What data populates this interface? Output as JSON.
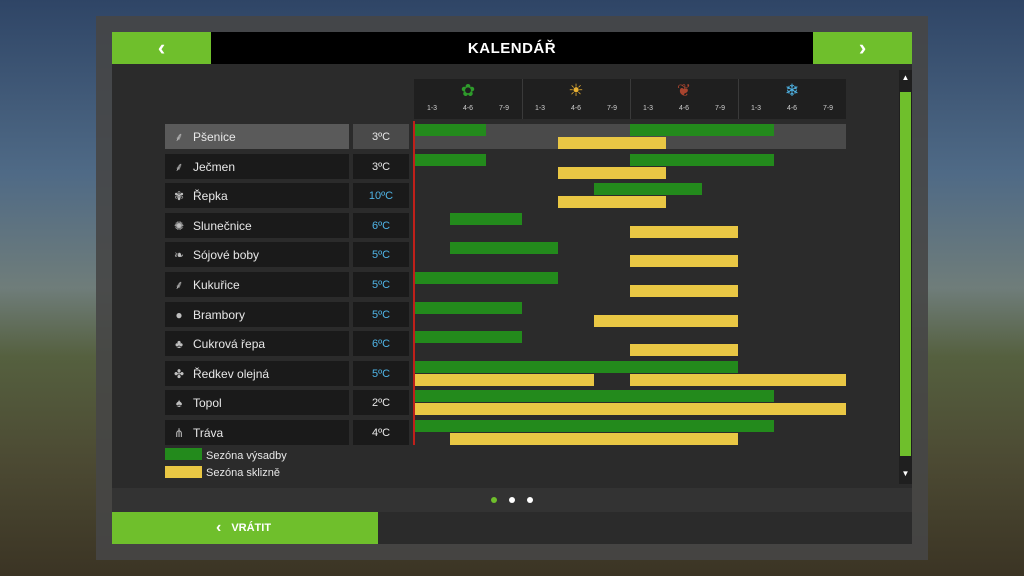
{
  "header": {
    "title": "KALENDÁŘ",
    "prev": "‹",
    "next": "›"
  },
  "seasons": [
    {
      "name": "spring",
      "icon": "flower-icon",
      "glyph": "✿",
      "color": "#2e9b2b",
      "months": [
        "1-3",
        "4-6",
        "7-9"
      ]
    },
    {
      "name": "summer",
      "icon": "sun-icon",
      "glyph": "☀",
      "color": "#e8b032",
      "months": [
        "1-3",
        "4-6",
        "7-9"
      ]
    },
    {
      "name": "autumn",
      "icon": "leaf-icon",
      "glyph": "❦",
      "color": "#a8442e",
      "months": [
        "1-3",
        "4-6",
        "7-9"
      ]
    },
    {
      "name": "winter",
      "icon": "snowflake-icon",
      "glyph": "❄",
      "color": "#4fb4e6",
      "months": [
        "1-3",
        "4-6",
        "7-9"
      ]
    }
  ],
  "crops": [
    {
      "name": "Pšenice",
      "temp": "3ºC",
      "icon": "wheat-icon",
      "glyph": "⸙",
      "temp_color": "#e8e8e8",
      "selected": true,
      "plant": [
        [
          0,
          2
        ],
        [
          6,
          10
        ]
      ],
      "harvest": [
        [
          4,
          7
        ]
      ]
    },
    {
      "name": "Ječmen",
      "temp": "3ºC",
      "icon": "barley-icon",
      "glyph": "⸙",
      "temp_color": "#e8e8e8",
      "selected": false,
      "plant": [
        [
          0,
          2
        ],
        [
          6,
          10
        ]
      ],
      "harvest": [
        [
          4,
          7
        ]
      ]
    },
    {
      "name": "Řepka",
      "temp": "10ºC",
      "icon": "canola-icon",
      "glyph": "✾",
      "temp_color": "#4fb4e6",
      "selected": false,
      "plant": [
        [
          5,
          8
        ]
      ],
      "harvest": [
        [
          4,
          7
        ]
      ]
    },
    {
      "name": "Slunečnice",
      "temp": "6ºC",
      "icon": "sunflower-icon",
      "glyph": "✺",
      "temp_color": "#4fb4e6",
      "selected": false,
      "plant": [
        [
          1,
          3
        ]
      ],
      "harvest": [
        [
          6,
          9
        ]
      ]
    },
    {
      "name": "Sójové boby",
      "temp": "5ºC",
      "icon": "soybean-icon",
      "glyph": "❧",
      "temp_color": "#4fb4e6",
      "selected": false,
      "plant": [
        [
          1,
          4
        ]
      ],
      "harvest": [
        [
          6,
          9
        ]
      ]
    },
    {
      "name": "Kukuřice",
      "temp": "5ºC",
      "icon": "corn-icon",
      "glyph": "⸙",
      "temp_color": "#4fb4e6",
      "selected": false,
      "plant": [
        [
          0,
          4
        ]
      ],
      "harvest": [
        [
          6,
          9
        ]
      ]
    },
    {
      "name": "Brambory",
      "temp": "5ºC",
      "icon": "potato-icon",
      "glyph": "●",
      "temp_color": "#4fb4e6",
      "selected": false,
      "plant": [
        [
          0,
          3
        ]
      ],
      "harvest": [
        [
          5,
          9
        ]
      ]
    },
    {
      "name": "Cukrová řepa",
      "temp": "6ºC",
      "icon": "sugarbeet-icon",
      "glyph": "♣",
      "temp_color": "#4fb4e6",
      "selected": false,
      "plant": [
        [
          0,
          3
        ]
      ],
      "harvest": [
        [
          6,
          9
        ]
      ]
    },
    {
      "name": "Ředkev olejná",
      "temp": "5ºC",
      "icon": "oilseed-radish-icon",
      "glyph": "✤",
      "temp_color": "#4fb4e6",
      "selected": false,
      "plant": [
        [
          0,
          9
        ]
      ],
      "harvest": [
        [
          0,
          5
        ],
        [
          6,
          12
        ]
      ]
    },
    {
      "name": "Topol",
      "temp": "2ºC",
      "icon": "poplar-icon",
      "glyph": "♠",
      "temp_color": "#e8e8e8",
      "selected": false,
      "plant": [
        [
          0,
          10
        ]
      ],
      "harvest": [
        [
          0,
          12
        ]
      ]
    },
    {
      "name": "Tráva",
      "temp": "4ºC",
      "icon": "grass-icon",
      "glyph": "⋔",
      "temp_color": "#e8e8e8",
      "selected": false,
      "plant": [
        [
          0,
          10
        ]
      ],
      "harvest": [
        [
          1,
          9
        ]
      ]
    }
  ],
  "legend": {
    "planting": "Sezóna výsadby",
    "harvest": "Sezóna sklizně"
  },
  "colors": {
    "accent": "#6fbf2c",
    "planting": "#238a1c",
    "harvest": "#e9c744",
    "current": "#c0201a"
  },
  "pager": {
    "pages": 3,
    "active": 0
  },
  "footer": {
    "back_label": "VRÁTIT"
  }
}
